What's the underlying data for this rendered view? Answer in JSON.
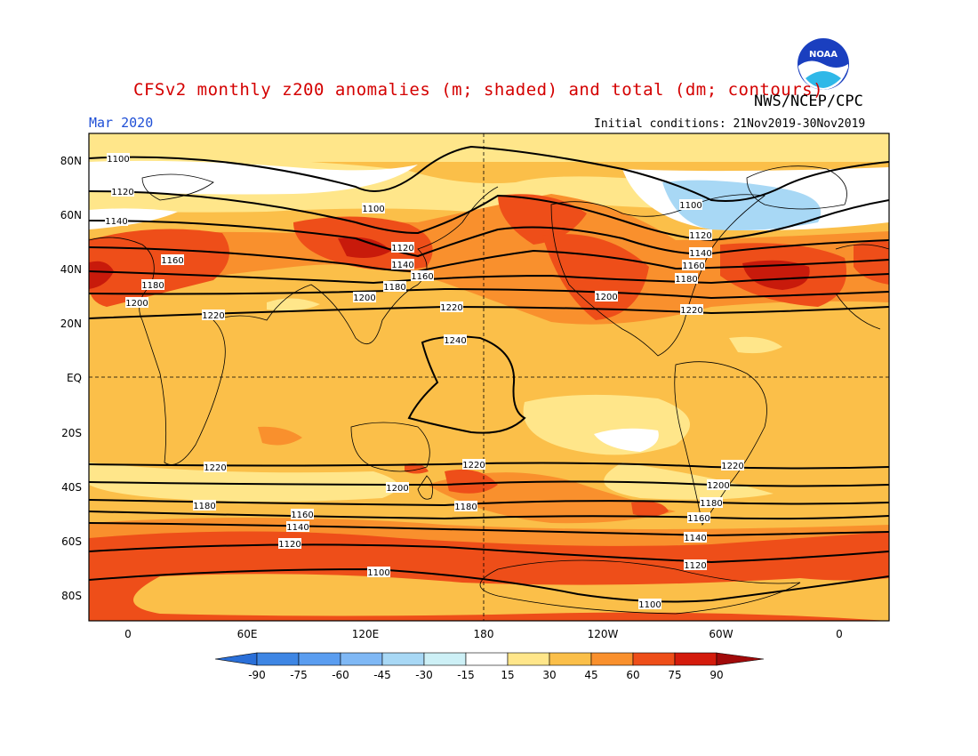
{
  "title": "CFSv2 monthly z200 anomalies (m; shaded) and total (dm; contours)",
  "agency": "NWS/NCEP/CPC",
  "logo_text": "NOAA",
  "valid_month": "Mar 2020",
  "initial_conditions": "Initial conditions: 21Nov2019-30Nov2019",
  "lat_labels": [
    "80N",
    "60N",
    "40N",
    "20N",
    "EQ",
    "20S",
    "40S",
    "60S",
    "80S"
  ],
  "lon_labels": [
    "0",
    "60E",
    "120E",
    "180",
    "120W",
    "60W",
    "0"
  ],
  "colorbar": {
    "ticks": [
      "-90",
      "-75",
      "-60",
      "-45",
      "-30",
      "-15",
      "15",
      "30",
      "45",
      "60",
      "75",
      "90"
    ],
    "colors": [
      "#2a6fd8",
      "#3e86e4",
      "#5a9df0",
      "#7fb8f5",
      "#a8d8f5",
      "#cdf0f6",
      "#ffffff",
      "#ffe68a",
      "#fbbf49",
      "#f9902d",
      "#ee4e19",
      "#d41b0c",
      "#a10a0a"
    ]
  },
  "contours": [
    {
      "label": "1100",
      "note": "north"
    },
    {
      "label": "1120"
    },
    {
      "label": "1140"
    },
    {
      "label": "1160"
    },
    {
      "label": "1180"
    },
    {
      "label": "1200"
    },
    {
      "label": "1220"
    },
    {
      "label": "1240"
    },
    {
      "label": "1100",
      "note": "south"
    }
  ],
  "contour_labels_north": [
    "1100",
    "1120",
    "1140",
    "1160",
    "1180",
    "1200",
    "1220",
    "1100",
    "1120",
    "1140",
    "1160",
    "1180",
    "1200",
    "1220",
    "1240",
    "1200",
    "1220",
    "1180",
    "1160",
    "1140",
    "1120",
    "1100"
  ],
  "contour_labels_south": [
    "1220",
    "1200",
    "1180",
    "1160",
    "1140",
    "1120",
    "1100",
    "1220",
    "1180",
    "1220",
    "1200",
    "1180",
    "1160",
    "1140",
    "1120",
    "1100"
  ]
}
